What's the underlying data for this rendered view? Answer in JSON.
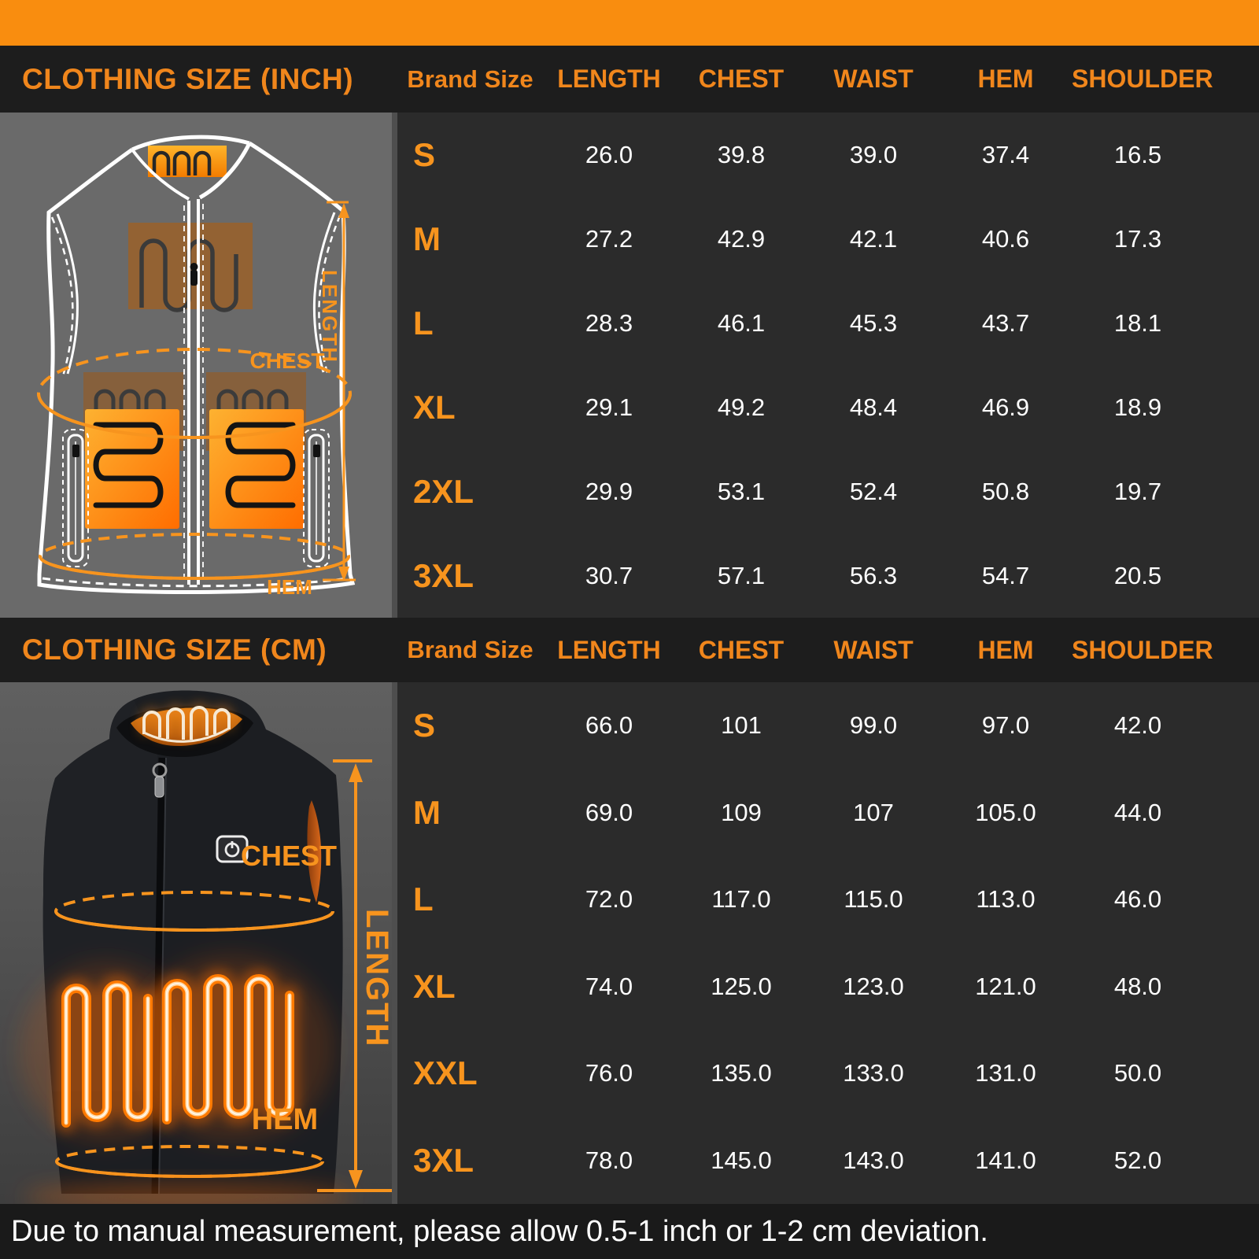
{
  "colors": {
    "accent_orange": "#F7941E",
    "header_orange": "#F0861C",
    "topbar_orange": "#F98D0F",
    "band_bg": "#1D1D1D",
    "table_bg": "#2B2B2B",
    "panel_grey": "#6A6A6A",
    "footer_bg": "#1A1A1A",
    "value_text": "#FFFFFF"
  },
  "section_inch": {
    "title": "CLOTHING SIZE (INCH)",
    "diagram": {
      "length_label": "LENGTH",
      "chest_label": "CHEST",
      "hem_label": "HEM"
    },
    "table": {
      "columns": [
        "Brand Size",
        "LENGTH",
        "CHEST",
        "WAIST",
        "HEM",
        "SHOULDER"
      ],
      "rows": [
        {
          "size": "S",
          "values": [
            "26.0",
            "39.8",
            "39.0",
            "37.4",
            "16.5"
          ]
        },
        {
          "size": "M",
          "values": [
            "27.2",
            "42.9",
            "42.1",
            "40.6",
            "17.3"
          ]
        },
        {
          "size": "L",
          "values": [
            "28.3",
            "46.1",
            "45.3",
            "43.7",
            "18.1"
          ]
        },
        {
          "size": "XL",
          "values": [
            "29.1",
            "49.2",
            "48.4",
            "46.9",
            "18.9"
          ]
        },
        {
          "size": "2XL",
          "values": [
            "29.9",
            "53.1",
            "52.4",
            "50.8",
            "19.7"
          ]
        },
        {
          "size": "3XL",
          "values": [
            "30.7",
            "57.1",
            "56.3",
            "54.7",
            "20.5"
          ]
        }
      ]
    }
  },
  "section_cm": {
    "title": "CLOTHING SIZE (CM)",
    "diagram": {
      "length_label": "LENGTH",
      "chest_label": "CHEST",
      "hem_label": "HEM"
    },
    "table": {
      "columns": [
        "Brand Size",
        "LENGTH",
        "CHEST",
        "WAIST",
        "HEM",
        "SHOULDER"
      ],
      "rows": [
        {
          "size": "S",
          "values": [
            "66.0",
            "101",
            "99.0",
            "97.0",
            "42.0"
          ]
        },
        {
          "size": "M",
          "values": [
            "69.0",
            "109",
            "107",
            "105.0",
            "44.0"
          ]
        },
        {
          "size": "L",
          "values": [
            "72.0",
            "117.0",
            "115.0",
            "113.0",
            "46.0"
          ]
        },
        {
          "size": "XL",
          "values": [
            "74.0",
            "125.0",
            "123.0",
            "121.0",
            "48.0"
          ]
        },
        {
          "size": "XXL",
          "values": [
            "76.0",
            "135.0",
            "133.0",
            "131.0",
            "50.0"
          ]
        },
        {
          "size": "3XL",
          "values": [
            "78.0",
            "145.0",
            "143.0",
            "141.0",
            "52.0"
          ]
        }
      ]
    }
  },
  "footer": {
    "note": "Due to manual measurement, please allow 0.5-1 inch or 1-2 cm deviation."
  }
}
